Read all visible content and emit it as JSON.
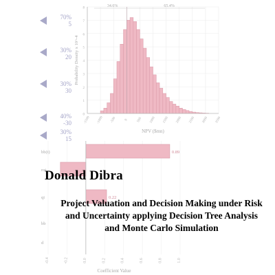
{
  "cover": {
    "author": "Donald Dibra",
    "title": "Project Valuation and Decision Making under Risk and Uncertainty applying Decision Tree Analysis and Monte Carlo Simulation"
  },
  "left_markers": [
    {
      "line1": "70%",
      "line2": "5"
    },
    {
      "line1": "30%",
      "line2": "20"
    },
    {
      "line1": "30%",
      "line2": "30"
    },
    {
      "line1": "40%",
      "line2": "-30"
    },
    {
      "line1": "30%",
      "line2": "15"
    }
  ],
  "colors": {
    "bar": "#efb9c4",
    "bar_edge": "#d99aa8",
    "marker": "#a9a9c8",
    "axis": "#b8b8b8"
  },
  "chart_data": [
    {
      "type": "bar",
      "title": "",
      "xlabel": "NPV ($mn)",
      "ylabel": "Probability Density x 10^-4",
      "top_labels": [
        "34.6%",
        "65.4%"
      ],
      "x_ticks": [
        "-1500",
        "-1000",
        "-500",
        "0",
        "500",
        "1000",
        "1500",
        "2000",
        "2500",
        "3000",
        "3500"
      ],
      "y_ticks": [
        "0",
        "1",
        "2",
        "3",
        "4",
        "5",
        "6",
        "7",
        "8"
      ],
      "xlim": [
        -1500,
        3500
      ],
      "ylim": [
        0,
        8
      ],
      "bin_width": 125,
      "bin_start": -1000,
      "values": [
        0.2,
        0.4,
        0.8,
        1.5,
        2.6,
        3.9,
        5.2,
        6.3,
        7.0,
        7.2,
        6.9,
        6.3,
        5.6,
        4.9,
        4.2,
        3.5,
        2.9,
        2.3,
        1.9,
        1.5,
        1.2,
        0.9,
        0.7,
        0.55,
        0.4,
        0.3,
        0.22,
        0.15,
        0.1,
        0.07,
        0.05,
        0.03,
        0.02
      ],
      "grid": true
    },
    {
      "type": "bar",
      "title": "",
      "xlabel": "Coefficient Value",
      "categories": [
        "bb(t)",
        "rot",
        "qi",
        "bb",
        "d"
      ],
      "values": [
        0.89,
        -0.27,
        0.22,
        0.0,
        0.0
      ],
      "value_labels": [
        "0.89",
        "",
        "0.22",
        "",
        ""
      ],
      "x_ticks": [
        "-0.4",
        "-0.2",
        "0.0",
        "0.2",
        "0.4",
        "0.6",
        "0.8",
        "1.0"
      ],
      "xlim": [
        -0.4,
        1.0
      ]
    }
  ]
}
